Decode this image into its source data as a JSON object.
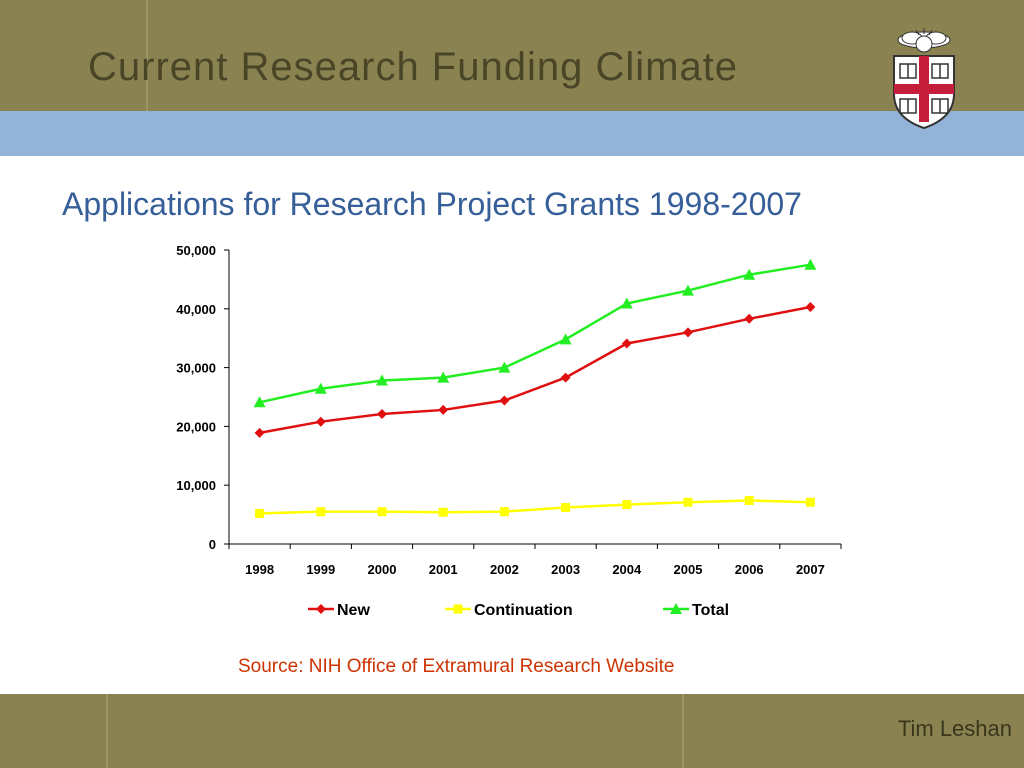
{
  "slide": {
    "title": "Current Research Funding Climate",
    "footer_author": "Tim Leshan",
    "source": "Source: NIH Office of Extramural Research Website"
  },
  "colors": {
    "header": "#8a8351",
    "band": "#94b3d9",
    "title": "#4a4526",
    "chart_title": "#365f99",
    "source": "#cc3300"
  },
  "chart_data": {
    "type": "line",
    "title": "Applications for Research Project Grants 1998-2007",
    "xlabel": "",
    "ylabel": "",
    "ylim": [
      0,
      50000
    ],
    "yticks": [
      "0",
      "10,000",
      "20,000",
      "30,000",
      "40,000",
      "50,000"
    ],
    "categories": [
      "1998",
      "1999",
      "2000",
      "2001",
      "2002",
      "2003",
      "2004",
      "2005",
      "2006",
      "2007"
    ],
    "legend_position": "bottom",
    "grid": false,
    "series": [
      {
        "name": "New",
        "color": "#e01010",
        "marker": "diamond",
        "values": [
          18900,
          20800,
          22100,
          22800,
          24400,
          28300,
          34100,
          36000,
          38300,
          40300
        ]
      },
      {
        "name": "Continuation",
        "color": "#ffff00",
        "marker": "square",
        "values": [
          5200,
          5500,
          5500,
          5400,
          5500,
          6200,
          6700,
          7100,
          7400,
          7100
        ]
      },
      {
        "name": "Total",
        "color": "#22ee22",
        "marker": "triangle",
        "values": [
          24100,
          26400,
          27800,
          28300,
          30000,
          34800,
          40900,
          43100,
          45800,
          47500
        ]
      }
    ]
  }
}
